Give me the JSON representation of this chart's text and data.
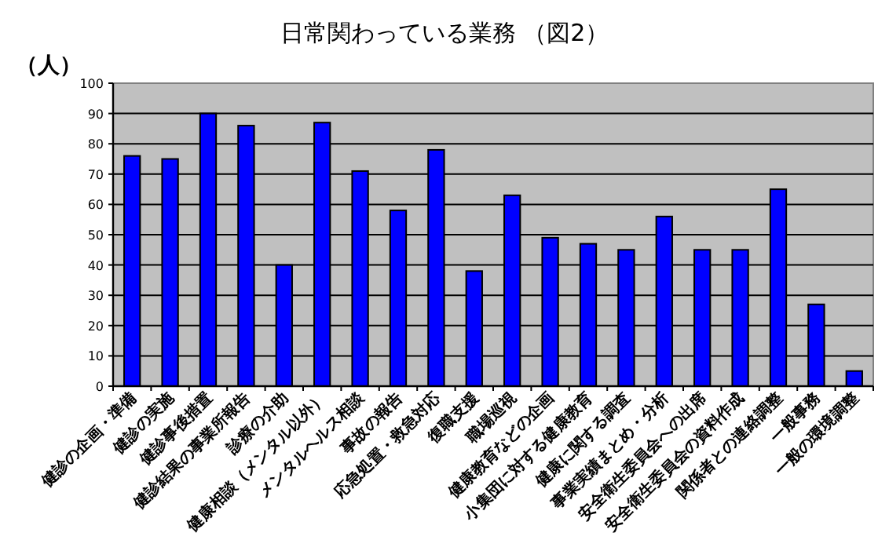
{
  "chart_data": {
    "type": "bar",
    "title": "日常関わっている業務 （図2）",
    "ylabel": "（人）",
    "categories": [
      "健診の企画・準備",
      "健診の実施",
      "健診事後措置",
      "健診結果の事業所報告",
      "診療の介助",
      "健康相談（メンタル以外）",
      "メンタルヘルス相談",
      "事故の報告",
      "応急処置・救急対応",
      "復職支援",
      "職場巡視",
      "健康教育などの企画",
      "小集団に対する健康教育",
      "健康に関する調査",
      "事業実績まとめ・分析",
      "安全衛生委員会への出席",
      "安全衛生委員会の資料作成",
      "関係者との連絡調整",
      "一般事務",
      "一般の環境調整"
    ],
    "values": [
      76,
      75,
      90,
      86,
      40,
      87,
      71,
      58,
      78,
      38,
      63,
      49,
      47,
      45,
      56,
      45,
      45,
      65,
      27,
      5
    ],
    "color": "#0000ff",
    "ylim": [
      0,
      100
    ],
    "yticks": [
      0,
      10,
      20,
      30,
      40,
      50,
      60,
      70,
      80,
      90,
      100
    ],
    "grid": "y"
  }
}
